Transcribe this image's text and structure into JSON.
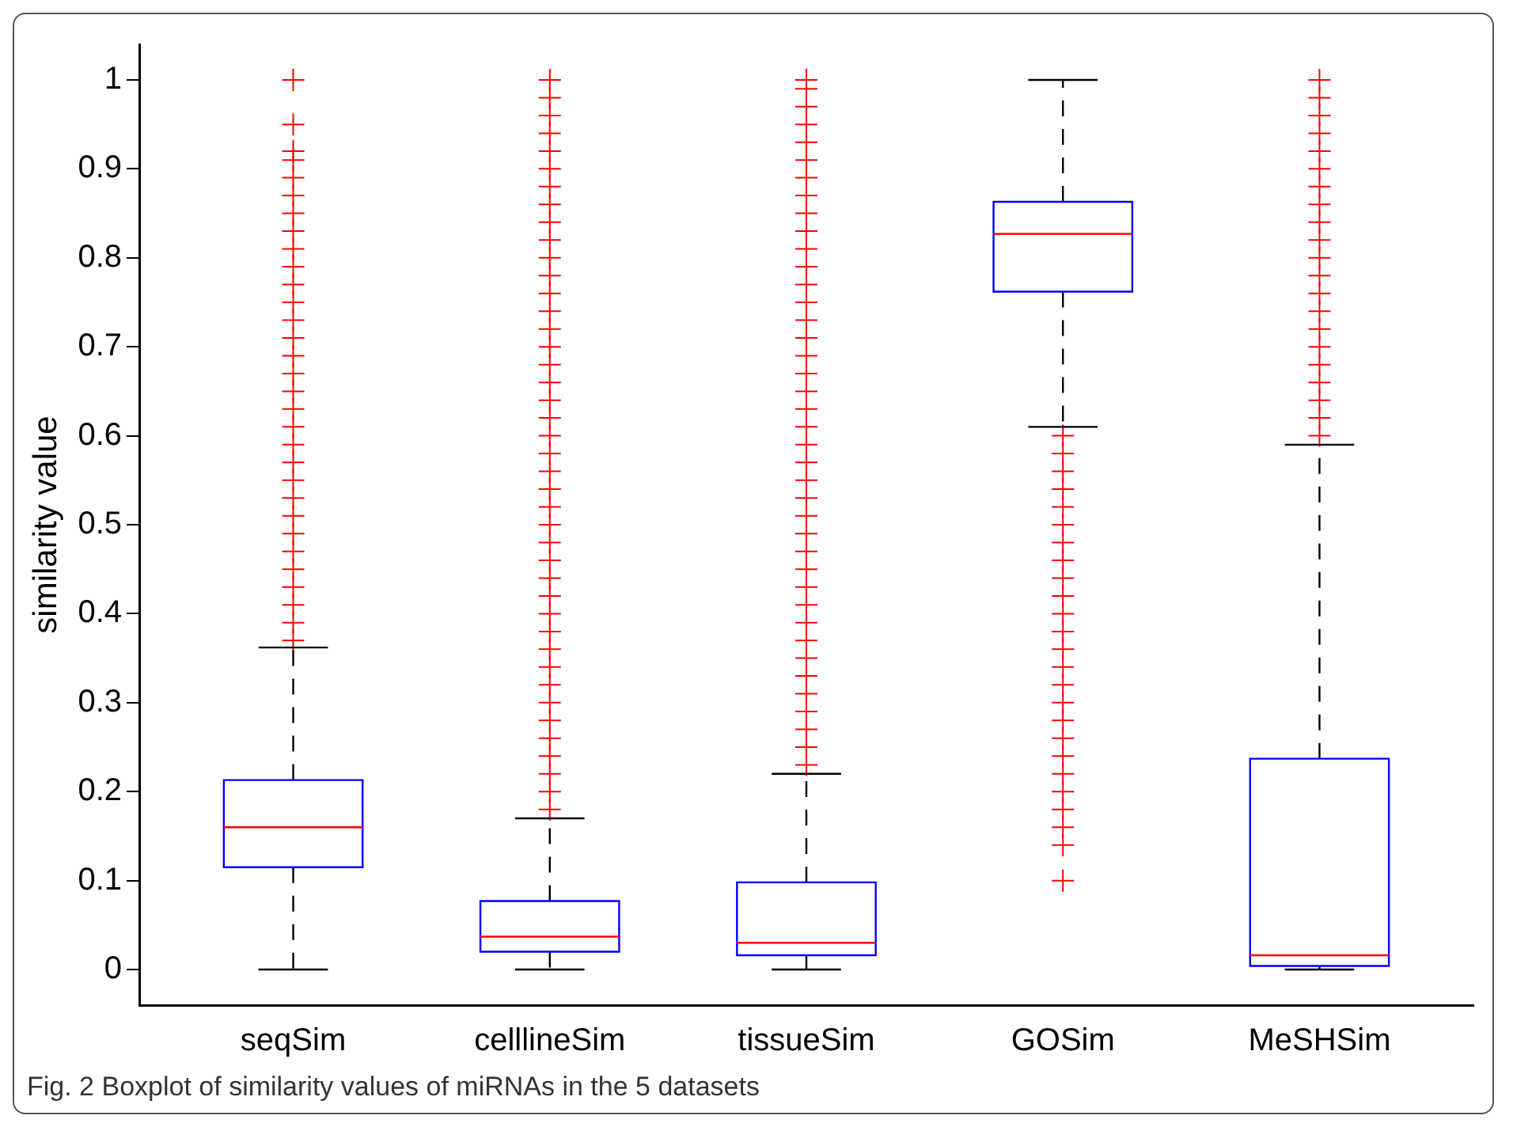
{
  "chart_data": {
    "type": "box",
    "ylabel": "similarity value",
    "categories": [
      "seqSim",
      "celllineSim",
      "tissueSim",
      "GOSim",
      "MeSHSim"
    ],
    "ylim": [
      -0.04,
      1.04
    ],
    "yticks": [
      0,
      0.1,
      0.2,
      0.3,
      0.4,
      0.5,
      0.6,
      0.7,
      0.8,
      0.9,
      1
    ],
    "grid": false,
    "legend": false,
    "marker": "cross",
    "boxes": [
      {
        "low": 0,
        "q1": 0.115,
        "median": 0.16,
        "q3": 0.213,
        "high": 0.362,
        "outliers": [
          0.37,
          0.39,
          0.41,
          0.43,
          0.45,
          0.47,
          0.49,
          0.51,
          0.53,
          0.55,
          0.57,
          0.59,
          0.61,
          0.63,
          0.65,
          0.67,
          0.69,
          0.71,
          0.73,
          0.75,
          0.77,
          0.79,
          0.81,
          0.83,
          0.85,
          0.87,
          0.89,
          0.91,
          0.92,
          0.95,
          1
        ]
      },
      {
        "low": 0,
        "q1": 0.02,
        "median": 0.037,
        "q3": 0.077,
        "high": 0.17,
        "outliers": [
          0.18,
          0.2,
          0.22,
          0.24,
          0.26,
          0.28,
          0.3,
          0.32,
          0.34,
          0.36,
          0.38,
          0.4,
          0.42,
          0.44,
          0.46,
          0.48,
          0.5,
          0.52,
          0.54,
          0.56,
          0.58,
          0.6,
          0.62,
          0.64,
          0.66,
          0.68,
          0.7,
          0.72,
          0.74,
          0.76,
          0.78,
          0.8,
          0.82,
          0.84,
          0.86,
          0.88,
          0.9,
          0.92,
          0.94,
          0.96,
          0.98,
          1
        ]
      },
      {
        "low": 0,
        "q1": 0.016,
        "median": 0.03,
        "q3": 0.098,
        "high": 0.22,
        "outliers": [
          0.23,
          0.25,
          0.27,
          0.29,
          0.31,
          0.33,
          0.35,
          0.37,
          0.39,
          0.41,
          0.43,
          0.45,
          0.47,
          0.49,
          0.51,
          0.53,
          0.55,
          0.57,
          0.59,
          0.61,
          0.63,
          0.65,
          0.67,
          0.69,
          0.71,
          0.73,
          0.75,
          0.77,
          0.79,
          0.81,
          0.83,
          0.85,
          0.87,
          0.89,
          0.91,
          0.93,
          0.95,
          0.97,
          0.99,
          1
        ]
      },
      {
        "low": 0.61,
        "q1": 0.762,
        "median": 0.827,
        "q3": 0.863,
        "high": 1,
        "outliers": [
          0.1,
          0.14,
          0.16,
          0.18,
          0.2,
          0.22,
          0.24,
          0.26,
          0.28,
          0.3,
          0.32,
          0.34,
          0.36,
          0.38,
          0.4,
          0.42,
          0.44,
          0.46,
          0.48,
          0.5,
          0.52,
          0.54,
          0.56,
          0.58,
          0.6
        ]
      },
      {
        "low": 0,
        "q1": 0.004,
        "median": 0.016,
        "q3": 0.237,
        "high": 0.59,
        "outliers": [
          0.6,
          0.62,
          0.64,
          0.66,
          0.68,
          0.7,
          0.72,
          0.74,
          0.76,
          0.78,
          0.8,
          0.82,
          0.84,
          0.86,
          0.88,
          0.9,
          0.92,
          0.94,
          0.96,
          0.98,
          1
        ]
      }
    ],
    "annotations": [
      "Fig. 2 Boxplot of similarity values of miRNAs in the 5 datasets"
    ]
  }
}
